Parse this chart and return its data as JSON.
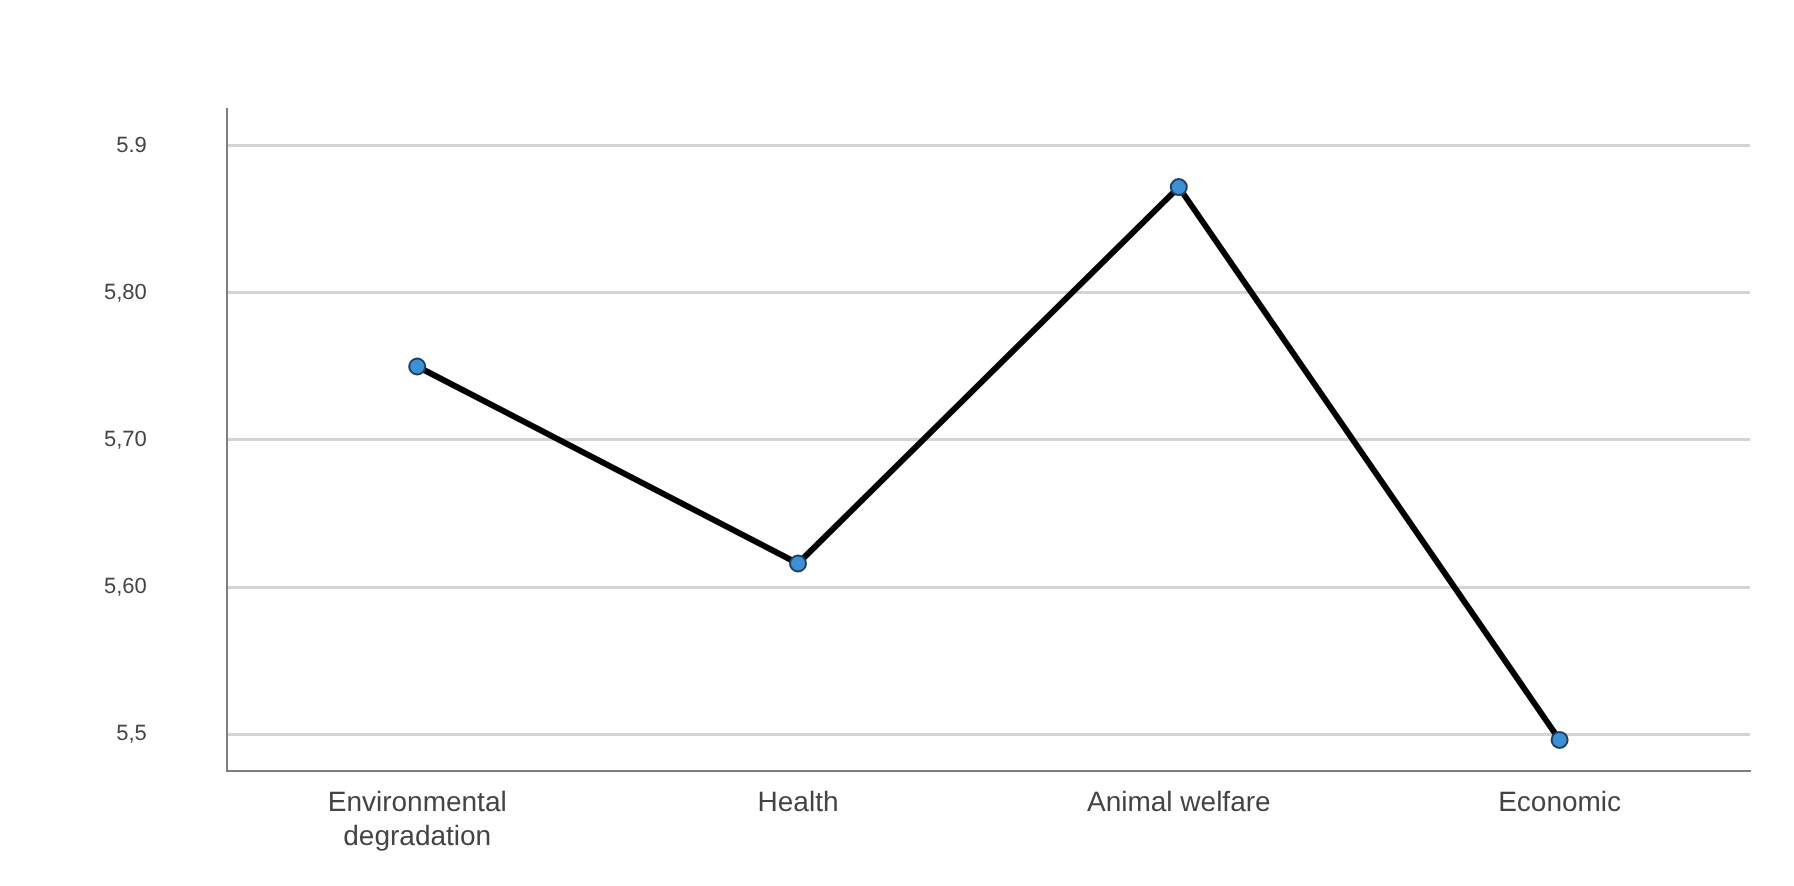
{
  "chart_data": {
    "type": "line",
    "categories": [
      "Environmental degradation",
      "Health",
      "Animal welfare",
      "Economic"
    ],
    "series": [
      {
        "color": "#000000",
        "values": [
          5.75,
          5.616,
          5.872,
          5.496
        ]
      }
    ],
    "ylim": [
      5.475,
      5.925
    ],
    "yticks": [
      {
        "value": 5.5,
        "label": "5,5"
      },
      {
        "value": 5.6,
        "label": "5,60"
      },
      {
        "value": 5.7,
        "label": "5,70"
      },
      {
        "value": 5.8,
        "label": "5,80"
      },
      {
        "value": 5.9,
        "label": "5.9"
      }
    ],
    "grid": "y",
    "marker": "circle",
    "line_style": "solid",
    "legend": false
  }
}
